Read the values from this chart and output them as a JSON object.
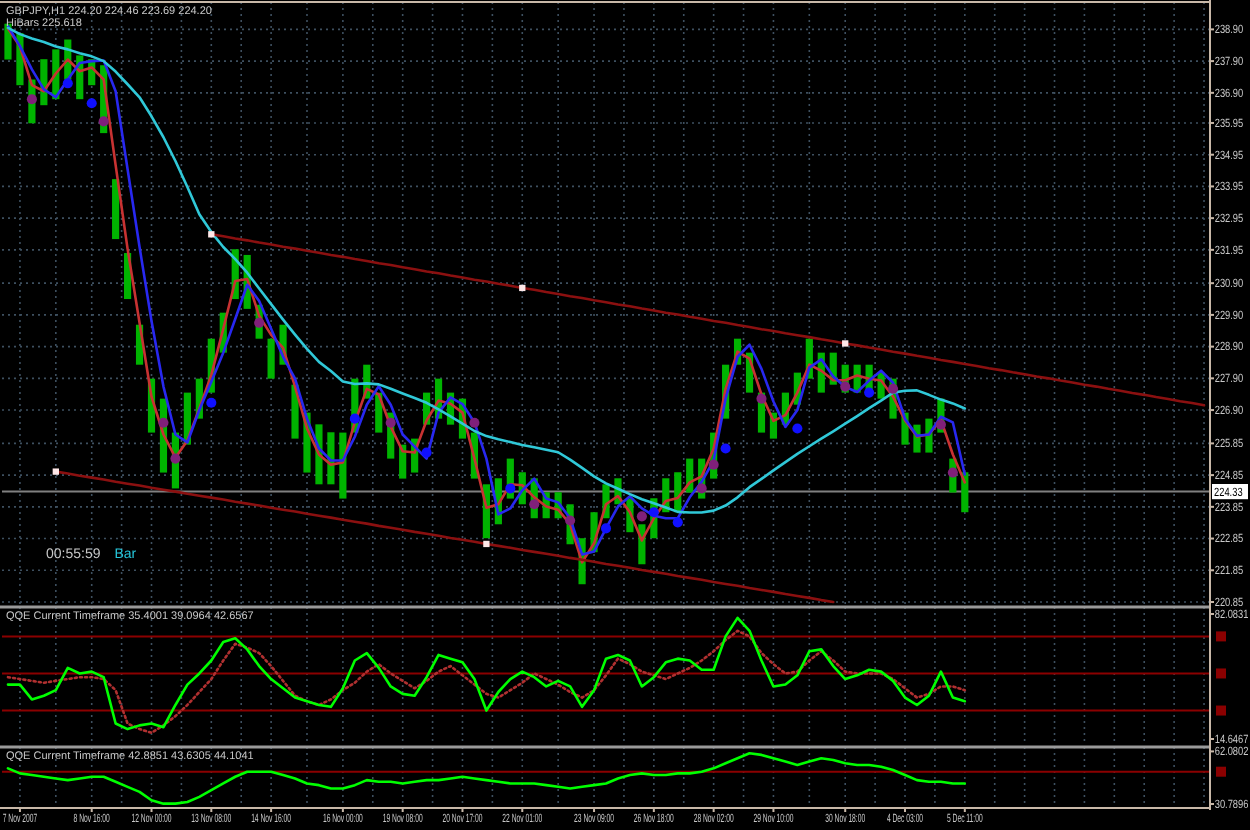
{
  "chart_data": [
    {
      "type": "line",
      "title": "GBPJPY,H1 224.20 224.46 223.69 224.20",
      "subtitle": "HiBars 225.618",
      "annotations": [
        "00:55:59",
        "Bar"
      ],
      "categories": [
        null,
        null,
        null,
        null,
        null,
        null,
        null,
        null,
        null,
        null,
        null,
        null,
        null,
        null,
        null,
        null,
        null,
        null,
        null,
        null,
        null,
        null,
        null,
        null,
        null,
        null,
        null,
        null,
        null,
        null,
        null,
        null,
        null,
        null,
        null,
        null,
        null,
        null,
        null,
        null,
        null,
        null,
        null,
        null,
        null,
        null,
        null,
        null,
        null,
        null,
        null,
        null,
        null,
        null,
        null,
        null,
        null,
        null,
        null,
        null,
        null,
        null,
        null,
        null,
        null,
        null,
        null,
        null,
        null,
        null,
        null,
        null,
        null,
        null,
        null,
        null,
        null,
        null,
        null,
        null,
        null,
        null,
        null,
        null,
        null,
        null,
        null,
        null,
        null,
        null,
        null,
        null,
        null,
        null,
        null,
        null,
        null,
        null,
        null,
        null,
        null
      ],
      "ylim": [
        220.85,
        239.7
      ],
      "tick_labels": "y",
      "grid": true,
      "yticks": [
        {
          "value": 238.9,
          "label": "238.90"
        },
        {
          "value": 237.9,
          "label": "237.90"
        },
        {
          "value": 236.9,
          "label": "236.90"
        },
        235.95,
        234.95,
        233.95,
        232.95,
        231.95,
        {
          "value": 230.9,
          "label": "230.90"
        },
        {
          "value": 229.9,
          "label": "229.90"
        },
        {
          "value": 228.9,
          "label": "228.90"
        },
        {
          "value": 227.9,
          "label": "227.90"
        },
        {
          "value": 226.9,
          "label": "226.90"
        },
        225.85,
        224.85,
        223.85,
        222.85,
        221.85,
        220.85
      ],
      "ref_lines": [
        {
          "axis": "y",
          "value": 224.33,
          "label": "224.33",
          "color": "#808080"
        }
      ],
      "series": [
        {
          "type": "bar",
          "color": "#00b400",
          "base": [
            237.95,
            237.14,
            235.94,
            236.51,
            236.7,
            237.32,
            236.7,
            237.14,
            235.63,
            232.29,
            230.4,
            228.33,
            226.19,
            224.93,
            224.43,
            225.81,
            226.63,
            227.45,
            228.71,
            230.4,
            230.09,
            229.15,
            227.89,
            228.33,
            226.0,
            224.93,
            224.56,
            224.56,
            224.11,
            226.19,
            227.26,
            226.19,
            225.37,
            224.74,
            224.93,
            226.44,
            226.63,
            226.44,
            226.0,
            224.74,
            222.86,
            223.3,
            224.11,
            223.93,
            223.49,
            223.49,
            223.49,
            222.67,
            221.41,
            222.42,
            223.49,
            223.93,
            223.05,
            222.04,
            222.86,
            223.68,
            223.68,
            224.3,
            224.11,
            224.74,
            226.63,
            228.33,
            227.45,
            226.19,
            226.0,
            226.44,
            227.07,
            227.89,
            227.45,
            227.7,
            227.45,
            227.45,
            227.45,
            227.26,
            226.63,
            225.81,
            225.56,
            225.56,
            226.19,
            224.3,
            223.68,
            null,
            null,
            null,
            null,
            null,
            null,
            null,
            null,
            null,
            null,
            null,
            null,
            null,
            null,
            null,
            null,
            null,
            null,
            null,
            null
          ],
          "values": [
            1.13,
            1.64,
            1.38,
            1.45,
            1.57,
            1.26,
            1.38,
            0.82,
            2.14,
            1.89,
            1.45,
            1.26,
            1.7,
            2.33,
            1.76,
            1.64,
            1.26,
            1.7,
            1.26,
            1.57,
            1.7,
            1.07,
            1.26,
            1.26,
            1.7,
            1.89,
            1.89,
            1.64,
            2.08,
            1.7,
            1.07,
            1.26,
            1.45,
            1.07,
            1.07,
            1.01,
            1.26,
            1.01,
            1.26,
            1.45,
            1.7,
            1.45,
            1.26,
            1.01,
            1.26,
            0.82,
            0.82,
            1.26,
            1.45,
            1.26,
            1.07,
            0.82,
            1.07,
            1.26,
            1.26,
            1.07,
            1.26,
            1.07,
            1.26,
            1.45,
            1.7,
            0.82,
            1.26,
            1.26,
            0.82,
            1.01,
            1.01,
            1.26,
            1.26,
            1.01,
            0.88,
            0.88,
            0.88,
            0.82,
            1.26,
            1.01,
            0.88,
            1.07,
            1.07,
            1.07,
            1.26,
            null,
            null,
            null,
            null,
            null,
            null,
            null,
            null,
            null,
            null,
            null,
            null,
            null,
            null,
            null,
            null,
            null,
            null,
            null,
            null
          ]
        },
        {
          "color": "#c83232",
          "values": [
            238.93,
            238.36,
            237.14,
            236.95,
            237.51,
            237.95,
            237.58,
            237.7,
            237.32,
            234.62,
            231.98,
            229.65,
            227.32,
            226.13,
            225.4,
            225.94,
            226.95,
            228.01,
            229.46,
            230.97,
            231.03,
            229.87,
            229.27,
            228.86,
            227.64,
            226.32,
            225.5,
            225.18,
            225.25,
            226.51,
            227.57,
            227.39,
            226.38,
            225.6,
            225.56,
            226.57,
            227.2,
            227.1,
            226.82,
            225.37,
            223.82,
            223.93,
            224.56,
            224.53,
            224.15,
            223.86,
            223.76,
            223.3,
            222.1,
            222.7,
            223.93,
            224.19,
            223.68,
            222.79,
            223.49,
            224.03,
            224.13,
            224.62,
            224.81,
            225.69,
            227.57,
            228.74,
            228.52,
            227.39,
            226.56,
            226.74,
            227.45,
            228.33,
            228.14,
            227.84,
            227.84,
            227.99,
            227.89,
            227.83,
            227.32,
            226.57,
            226.07,
            226.13,
            226.6,
            225.5,
            224.62,
            null,
            null,
            null,
            null,
            null,
            null,
            null,
            null,
            null,
            null,
            null,
            null,
            null,
            null,
            null,
            null,
            null,
            null,
            null,
            null
          ]
        },
        {
          "color": "#2828f0",
          "values": [
            239.0,
            238.37,
            237.64,
            237.01,
            236.76,
            237.32,
            237.84,
            237.9,
            237.92,
            236.95,
            234.49,
            232.04,
            229.71,
            227.64,
            226.13,
            225.88,
            226.9,
            227.79,
            228.71,
            229.77,
            230.85,
            230.34,
            229.46,
            228.58,
            227.89,
            226.63,
            225.69,
            225.31,
            225.31,
            226.06,
            227.07,
            227.65,
            227.07,
            226.13,
            225.75,
            225.37,
            226.82,
            227.3,
            227.09,
            226.51,
            225.37,
            223.61,
            223.8,
            224.37,
            224.74,
            224.11,
            223.99,
            223.49,
            222.35,
            222.44,
            223.17,
            223.86,
            224.18,
            223.8,
            223.57,
            223.49,
            223.49,
            224.15,
            224.64,
            225.31,
            227.26,
            228.58,
            228.96,
            228.2,
            227.17,
            226.37,
            226.9,
            228.24,
            228.5,
            227.96,
            227.63,
            227.47,
            227.83,
            228.14,
            227.76,
            226.63,
            226.09,
            226.13,
            226.69,
            226.51,
            224.87,
            null,
            null,
            null,
            null,
            null,
            null,
            null,
            null,
            null,
            null,
            null,
            null,
            null,
            null,
            null,
            null,
            null,
            null,
            null,
            null
          ]
        },
        {
          "color": "#30c8d8",
          "values": [
            238.95,
            238.75,
            238.61,
            238.5,
            238.36,
            238.27,
            238.15,
            238.05,
            237.9,
            237.57,
            237.17,
            236.76,
            236.16,
            235.5,
            234.75,
            233.93,
            233.07,
            232.51,
            232.04,
            231.66,
            231.23,
            230.73,
            230.24,
            229.75,
            229.28,
            228.83,
            228.42,
            228.13,
            227.8,
            227.72,
            227.74,
            227.71,
            227.57,
            227.42,
            227.28,
            227.13,
            226.92,
            226.7,
            226.47,
            226.24,
            226.08,
            225.98,
            225.89,
            225.8,
            225.73,
            225.65,
            225.57,
            225.34,
            225.08,
            224.81,
            224.59,
            224.42,
            224.25,
            224.09,
            223.96,
            223.83,
            223.69,
            223.67,
            223.67,
            223.73,
            223.89,
            224.15,
            224.47,
            224.73,
            225.0,
            225.26,
            225.52,
            225.76,
            226.0,
            226.23,
            226.47,
            226.71,
            226.96,
            227.2,
            227.45,
            227.51,
            227.52,
            227.38,
            227.23,
            227.11,
            226.95,
            null,
            null,
            null,
            null,
            null,
            null,
            null,
            null,
            null,
            null,
            null,
            null,
            null,
            null,
            null,
            null,
            null,
            null,
            null,
            null
          ]
        },
        {
          "type": "scatter",
          "color": "#80207a",
          "marker": "circle",
          "values": [
            null,
            null,
            236.7,
            null,
            null,
            null,
            null,
            null,
            236.0,
            null,
            null,
            null,
            null,
            226.5,
            225.37,
            null,
            null,
            null,
            null,
            null,
            null,
            229.65,
            null,
            null,
            null,
            null,
            null,
            null,
            null,
            null,
            null,
            null,
            226.5,
            null,
            null,
            null,
            null,
            null,
            null,
            226.5,
            null,
            null,
            null,
            null,
            223.93,
            null,
            null,
            223.42,
            null,
            null,
            null,
            null,
            null,
            223.55,
            null,
            null,
            null,
            null,
            224.43,
            225.18,
            null,
            null,
            null,
            227.26,
            null,
            null,
            null,
            null,
            null,
            null,
            227.64,
            null,
            null,
            null,
            227.57,
            null,
            null,
            null,
            226.44,
            224.93,
            null,
            null,
            null,
            null,
            null,
            null,
            null,
            null,
            null,
            null,
            null,
            null,
            null,
            null,
            null,
            null,
            null,
            null,
            null,
            null,
            null
          ]
        },
        {
          "type": "scatter",
          "color": "#1010ff",
          "marker": "circle",
          "values": [
            null,
            null,
            null,
            null,
            null,
            237.2,
            null,
            236.57,
            null,
            null,
            null,
            null,
            null,
            null,
            null,
            null,
            null,
            227.13,
            null,
            null,
            null,
            null,
            null,
            null,
            null,
            null,
            null,
            null,
            null,
            226.63,
            null,
            null,
            null,
            null,
            null,
            225.56,
            null,
            null,
            null,
            null,
            null,
            null,
            224.43,
            null,
            null,
            null,
            null,
            null,
            null,
            null,
            223.17,
            null,
            null,
            null,
            223.68,
            null,
            223.36,
            null,
            null,
            null,
            225.69,
            null,
            null,
            null,
            null,
            null,
            226.32,
            null,
            null,
            null,
            null,
            null,
            227.45,
            null,
            null,
            null,
            null,
            null,
            null,
            null,
            null,
            null,
            null,
            null,
            null,
            null,
            null,
            null,
            null,
            null,
            null,
            null,
            null,
            null,
            null,
            null,
            null,
            null,
            null,
            null,
            null
          ]
        },
        {
          "color": "#8b1010",
          "values": [
            null,
            null,
            null,
            null,
            null,
            null,
            null,
            null,
            null,
            null,
            null,
            null,
            null,
            null,
            null,
            null,
            null,
            232.44,
            232.38,
            232.31,
            232.25,
            232.18,
            232.12,
            232.05,
            231.99,
            231.92,
            231.86,
            231.79,
            231.73,
            231.66,
            231.6,
            231.53,
            231.47,
            231.4,
            231.34,
            231.27,
            231.21,
            231.14,
            231.08,
            231.01,
            230.95,
            230.88,
            230.82,
            230.75,
            230.69,
            230.62,
            230.56,
            230.49,
            230.43,
            230.36,
            230.3,
            230.23,
            230.17,
            230.1,
            230.04,
            229.97,
            229.91,
            229.84,
            229.78,
            229.71,
            229.65,
            229.58,
            229.52,
            229.45,
            229.39,
            229.32,
            229.26,
            229.2,
            229.13,
            229.07,
            229.0,
            228.94,
            228.87,
            228.81,
            228.74,
            228.68,
            228.61,
            228.55,
            228.48,
            228.42,
            228.35,
            228.29,
            228.22,
            228.16,
            228.09,
            228.03,
            227.96,
            227.9,
            227.83,
            227.77,
            227.7,
            227.64,
            227.57,
            227.51,
            227.44,
            227.38,
            227.31,
            227.25,
            227.18,
            227.12,
            227.05
          ]
        },
        {
          "color": "#8b1010",
          "values": [
            null,
            null,
            null,
            null,
            224.96,
            224.9,
            224.83,
            224.77,
            224.71,
            224.64,
            224.58,
            224.52,
            224.45,
            224.39,
            224.33,
            224.26,
            224.2,
            224.14,
            224.08,
            224.01,
            223.95,
            223.89,
            223.82,
            223.76,
            223.7,
            223.63,
            223.57,
            223.51,
            223.44,
            223.38,
            223.32,
            223.25,
            223.19,
            223.13,
            223.06,
            223.0,
            222.94,
            222.87,
            222.81,
            222.75,
            222.68,
            222.62,
            222.56,
            222.49,
            222.43,
            222.37,
            222.31,
            222.24,
            222.18,
            222.12,
            222.05,
            221.99,
            221.93,
            221.86,
            221.8,
            221.74,
            221.67,
            221.61,
            221.55,
            221.48,
            221.42,
            221.36,
            221.29,
            221.23,
            221.17,
            221.1,
            221.04,
            220.98,
            220.91,
            220.85,
            null,
            null,
            null,
            null,
            null,
            null,
            null,
            null,
            null,
            null,
            null,
            null,
            null,
            null,
            null,
            null,
            null,
            null,
            null,
            null,
            null,
            null,
            null,
            null,
            null,
            null,
            null,
            null,
            null,
            null,
            null
          ]
        },
        {
          "type": "scatter",
          "color": "#ffe8e8",
          "marker": "square",
          "values": [
            null,
            null,
            null,
            null,
            224.96,
            null,
            null,
            null,
            null,
            null,
            null,
            null,
            null,
            null,
            null,
            null,
            null,
            232.44,
            null,
            null,
            null,
            null,
            null,
            null,
            null,
            null,
            null,
            null,
            null,
            null,
            null,
            null,
            null,
            null,
            null,
            null,
            null,
            null,
            null,
            null,
            222.68,
            null,
            null,
            230.75,
            null,
            null,
            null,
            null,
            null,
            null,
            null,
            null,
            null,
            null,
            null,
            null,
            null,
            null,
            null,
            null,
            null,
            null,
            null,
            null,
            null,
            null,
            null,
            null,
            null,
            null,
            229.0,
            null,
            null,
            null,
            null,
            null,
            null,
            null,
            null,
            null,
            null,
            null,
            null,
            null,
            null,
            null,
            null,
            null,
            null,
            null,
            null,
            null,
            null,
            null,
            null,
            null,
            null,
            null,
            null,
            null,
            null
          ]
        }
      ]
    },
    {
      "type": "line",
      "title": "QQE Current Timeframe 35.4001 39.0964 42.6567",
      "categories": [
        null,
        null,
        null,
        null,
        null,
        null,
        null,
        null,
        null,
        null,
        null,
        null,
        null,
        null,
        null,
        null,
        null,
        null,
        null,
        null,
        null,
        null,
        null,
        null,
        null,
        null,
        null,
        null,
        null,
        null,
        null,
        null,
        null,
        null,
        null,
        null,
        null,
        null,
        null,
        null,
        null,
        null,
        null,
        null,
        null,
        null,
        null,
        null,
        null,
        null,
        null,
        null,
        null,
        null,
        null,
        null,
        null,
        null,
        null,
        null,
        null,
        null,
        null,
        null,
        null,
        null,
        null,
        null,
        null,
        null,
        null,
        null,
        null,
        null,
        null,
        null,
        null,
        null,
        null,
        null,
        null,
        null,
        null,
        null,
        null,
        null,
        null,
        null,
        null,
        null,
        null,
        null,
        null,
        null,
        null,
        null,
        null,
        null,
        null,
        null,
        null
      ],
      "ylim": [
        14.6467,
        82.0831
      ],
      "tick_labels": "y",
      "grid": "x",
      "yticks": [
        82.0831,
        14.6467
      ],
      "ref_lines": [
        {
          "axis": "y",
          "value": 70,
          "color": "#8b0000"
        },
        {
          "axis": "y",
          "value": 50,
          "color": "#8b0000"
        },
        {
          "axis": "y",
          "value": 30,
          "color": "#8b0000"
        }
      ],
      "series": [
        {
          "color": "#b03030",
          "line_style": "dotted",
          "values": [
            48,
            47,
            46,
            45,
            46,
            47,
            48,
            48,
            47,
            41,
            23,
            20,
            18,
            22,
            27,
            33,
            40,
            47,
            57,
            66,
            64,
            61,
            54,
            46,
            38,
            35,
            33,
            36,
            41,
            45,
            51,
            55,
            50,
            46,
            42,
            46,
            51,
            54,
            49,
            44,
            39,
            37,
            41,
            45,
            50,
            47,
            44,
            40,
            37,
            41,
            49,
            58,
            55,
            51,
            49,
            47,
            50,
            53,
            57,
            62,
            68,
            73,
            70,
            61,
            55,
            50,
            51,
            57,
            62,
            57,
            51,
            50,
            50,
            50,
            47,
            42,
            37,
            39,
            43,
            43,
            41,
            null,
            null,
            null,
            null,
            null,
            null,
            null,
            null,
            null,
            null,
            null,
            null,
            null,
            null,
            null,
            null,
            null,
            null,
            null,
            null
          ]
        },
        {
          "color": "#00ff00",
          "values": [
            44,
            44,
            36,
            38,
            41,
            53,
            50,
            51,
            48,
            23,
            20,
            22,
            23,
            21,
            33,
            44,
            50,
            57,
            67,
            69,
            63,
            54,
            47,
            42,
            37,
            35,
            33,
            32,
            42,
            57,
            61,
            53,
            43,
            39,
            38,
            48,
            60,
            58,
            56,
            47,
            30,
            40,
            47,
            51,
            48,
            43,
            46,
            43,
            32,
            41,
            58,
            60,
            57,
            43,
            48,
            56,
            58,
            57,
            52,
            52,
            70,
            80,
            73,
            57,
            43,
            44,
            49,
            62,
            63,
            54,
            47,
            49,
            52,
            51,
            46,
            37,
            33,
            38,
            51,
            37,
            35,
            null,
            null,
            null,
            null,
            null,
            null,
            null,
            null,
            null,
            null,
            null,
            null,
            null,
            null,
            null,
            null,
            null,
            null,
            null,
            null
          ]
        }
      ]
    },
    {
      "type": "line",
      "title": "QQE Current Timeframe 42.8851 43.6305 44.1041",
      "categories": [
        null,
        "7 Nov 2007",
        null,
        null,
        null,
        null,
        null,
        "8 Nov 16:00",
        null,
        null,
        null,
        null,
        "12 Nov 00:00",
        null,
        null,
        null,
        null,
        "13 Nov 08:00",
        null,
        null,
        null,
        null,
        "14 Nov 16:00",
        null,
        null,
        null,
        null,
        null,
        "16 Nov 00:00",
        null,
        null,
        null,
        null,
        "19 Nov 08:00",
        null,
        null,
        null,
        null,
        "20 Nov 17:00",
        null,
        null,
        null,
        null,
        "22 Nov 01:00",
        null,
        null,
        null,
        null,
        null,
        "23 Nov 09:00",
        null,
        null,
        null,
        null,
        "26 Nov 18:00",
        null,
        null,
        null,
        null,
        "28 Nov 02:00",
        null,
        null,
        null,
        null,
        "29 Nov 10:00",
        null,
        null,
        null,
        null,
        null,
        "30 Nov 18:00",
        null,
        null,
        null,
        null,
        "4 Dec 03:00",
        null,
        null,
        null,
        null,
        "5 Dec 11:00",
        null,
        null,
        null,
        null,
        null,
        null,
        null,
        null,
        null,
        null,
        null,
        null,
        null,
        null,
        null,
        null,
        null,
        null,
        null,
        null
      ],
      "ylim": [
        30.7896,
        62.0802
      ],
      "grid": "x",
      "yticks": [
        62.0802,
        30.7896
      ],
      "ref_lines": [
        {
          "axis": "y",
          "value": 50,
          "color": "#8b0000"
        }
      ],
      "series": [
        {
          "color": "#00ff00",
          "values": [
            52,
            49,
            48,
            47,
            46,
            45,
            46,
            47,
            47,
            44,
            41,
            38,
            33,
            31,
            31,
            32,
            35,
            39,
            43,
            47,
            50,
            50,
            50,
            48,
            46,
            43,
            42,
            40,
            40,
            42,
            45,
            44,
            44,
            43,
            44,
            45,
            45,
            46,
            47,
            46,
            45,
            44,
            43,
            43,
            43,
            42,
            41,
            40,
            41,
            42,
            43,
            46,
            48,
            49,
            48,
            48,
            49,
            49,
            50,
            52,
            55,
            58,
            61,
            60,
            58,
            56,
            54,
            56,
            58,
            57,
            55,
            54,
            54,
            53,
            51,
            48,
            45,
            44,
            44,
            43,
            43,
            null,
            null,
            null,
            null,
            null,
            null,
            null,
            null,
            null,
            null,
            null,
            null,
            null,
            null,
            null,
            null,
            null,
            null,
            null,
            null
          ]
        }
      ]
    }
  ]
}
